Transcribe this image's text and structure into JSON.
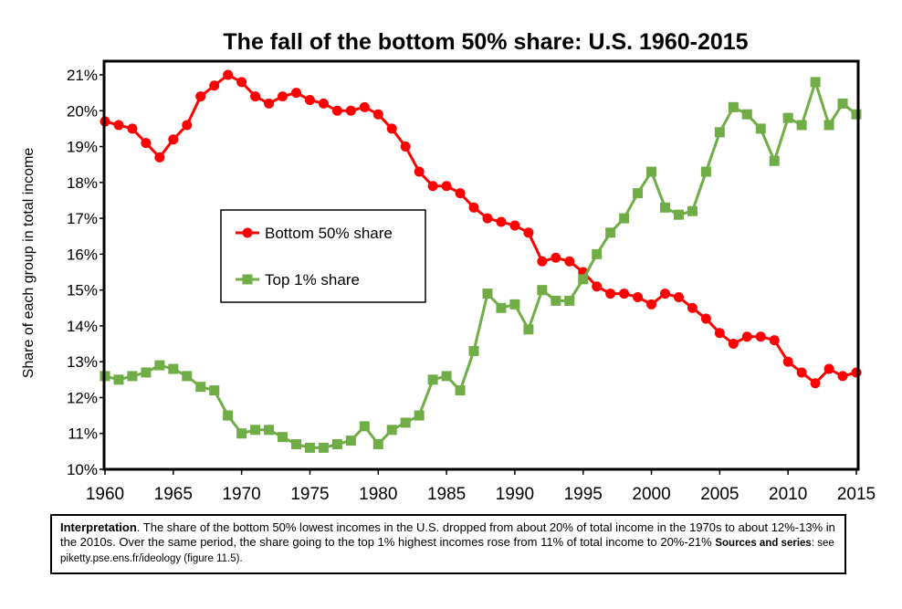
{
  "chart_data": {
    "type": "line",
    "title": "The fall of the bottom 50% share: U.S. 1960-2015",
    "xlabel": "",
    "ylabel": "Share of each group in total income",
    "xlim": [
      1960,
      2015
    ],
    "ylim": [
      0.1,
      0.21
    ],
    "x_ticks": [
      1960,
      1965,
      1970,
      1975,
      1980,
      1985,
      1990,
      1995,
      2000,
      2005,
      2010,
      2015
    ],
    "x_tick_labels": [
      "1960",
      "1965",
      "1970",
      "1975",
      "1980",
      "1985",
      "1990",
      "1995",
      "2000",
      "2005",
      "2010",
      "2015"
    ],
    "y_ticks": [
      0.1,
      0.11,
      0.12,
      0.13,
      0.14,
      0.15,
      0.16,
      0.17,
      0.18,
      0.19,
      0.2,
      0.21
    ],
    "y_tick_labels": [
      "10%",
      "11%",
      "12%",
      "13%",
      "14%",
      "15%",
      "16%",
      "17%",
      "18%",
      "19%",
      "20%",
      "21%"
    ],
    "grid": false,
    "legend_position": "center-left",
    "x": [
      1960,
      1961,
      1962,
      1963,
      1964,
      1965,
      1966,
      1967,
      1968,
      1969,
      1970,
      1971,
      1972,
      1973,
      1974,
      1975,
      1976,
      1977,
      1978,
      1979,
      1980,
      1981,
      1982,
      1983,
      1984,
      1985,
      1986,
      1987,
      1988,
      1989,
      1990,
      1991,
      1992,
      1993,
      1994,
      1995,
      1996,
      1997,
      1998,
      1999,
      2000,
      2001,
      2002,
      2003,
      2004,
      2005,
      2006,
      2007,
      2008,
      2009,
      2010,
      2011,
      2012,
      2013,
      2014,
      2015
    ],
    "series": [
      {
        "name": "Bottom 50% share",
        "color": "#ff0000",
        "marker": "circle",
        "values": [
          0.197,
          0.196,
          0.195,
          0.191,
          0.187,
          0.192,
          0.196,
          0.204,
          0.207,
          0.21,
          0.208,
          0.204,
          0.202,
          0.204,
          0.205,
          0.203,
          0.202,
          0.2,
          0.2,
          0.201,
          0.199,
          0.195,
          0.19,
          0.183,
          0.179,
          0.179,
          0.177,
          0.173,
          0.17,
          0.169,
          0.168,
          0.166,
          0.158,
          0.159,
          0.158,
          0.155,
          0.151,
          0.149,
          0.149,
          0.148,
          0.146,
          0.149,
          0.148,
          0.145,
          0.142,
          0.138,
          0.135,
          0.137,
          0.137,
          0.136,
          0.13,
          0.127,
          0.124,
          0.128,
          0.126,
          0.127
        ]
      },
      {
        "name": "Top 1% share",
        "color": "#70ad47",
        "marker": "square",
        "values": [
          0.126,
          0.125,
          0.126,
          0.127,
          0.129,
          0.128,
          0.126,
          0.123,
          0.122,
          0.115,
          0.11,
          0.111,
          0.111,
          0.109,
          0.107,
          0.106,
          0.106,
          0.107,
          0.108,
          0.112,
          0.107,
          0.111,
          0.113,
          0.115,
          0.125,
          0.126,
          0.122,
          0.133,
          0.149,
          0.145,
          0.146,
          0.139,
          0.15,
          0.147,
          0.147,
          0.153,
          0.16,
          0.166,
          0.17,
          0.177,
          0.183,
          0.173,
          0.171,
          0.172,
          0.183,
          0.194,
          0.201,
          0.199,
          0.195,
          0.186,
          0.198,
          0.196,
          0.208,
          0.196,
          0.202,
          0.199
        ]
      }
    ]
  },
  "note": {
    "interpretation_label": "Interpretation",
    "interpretation_text": ". The share of the bottom 50% lowest incomes in the U.S. dropped from about 20% of total income in the 1970s to about 12%-13% in the 2010s. Over the same period, the share going to the top 1% highest incomes rose from 11% of total income to 20%-21% ",
    "sources_label": "Sources and series",
    "sources_text": ": see piketty.pse.ens.fr/ideology (figure 11.5)."
  }
}
